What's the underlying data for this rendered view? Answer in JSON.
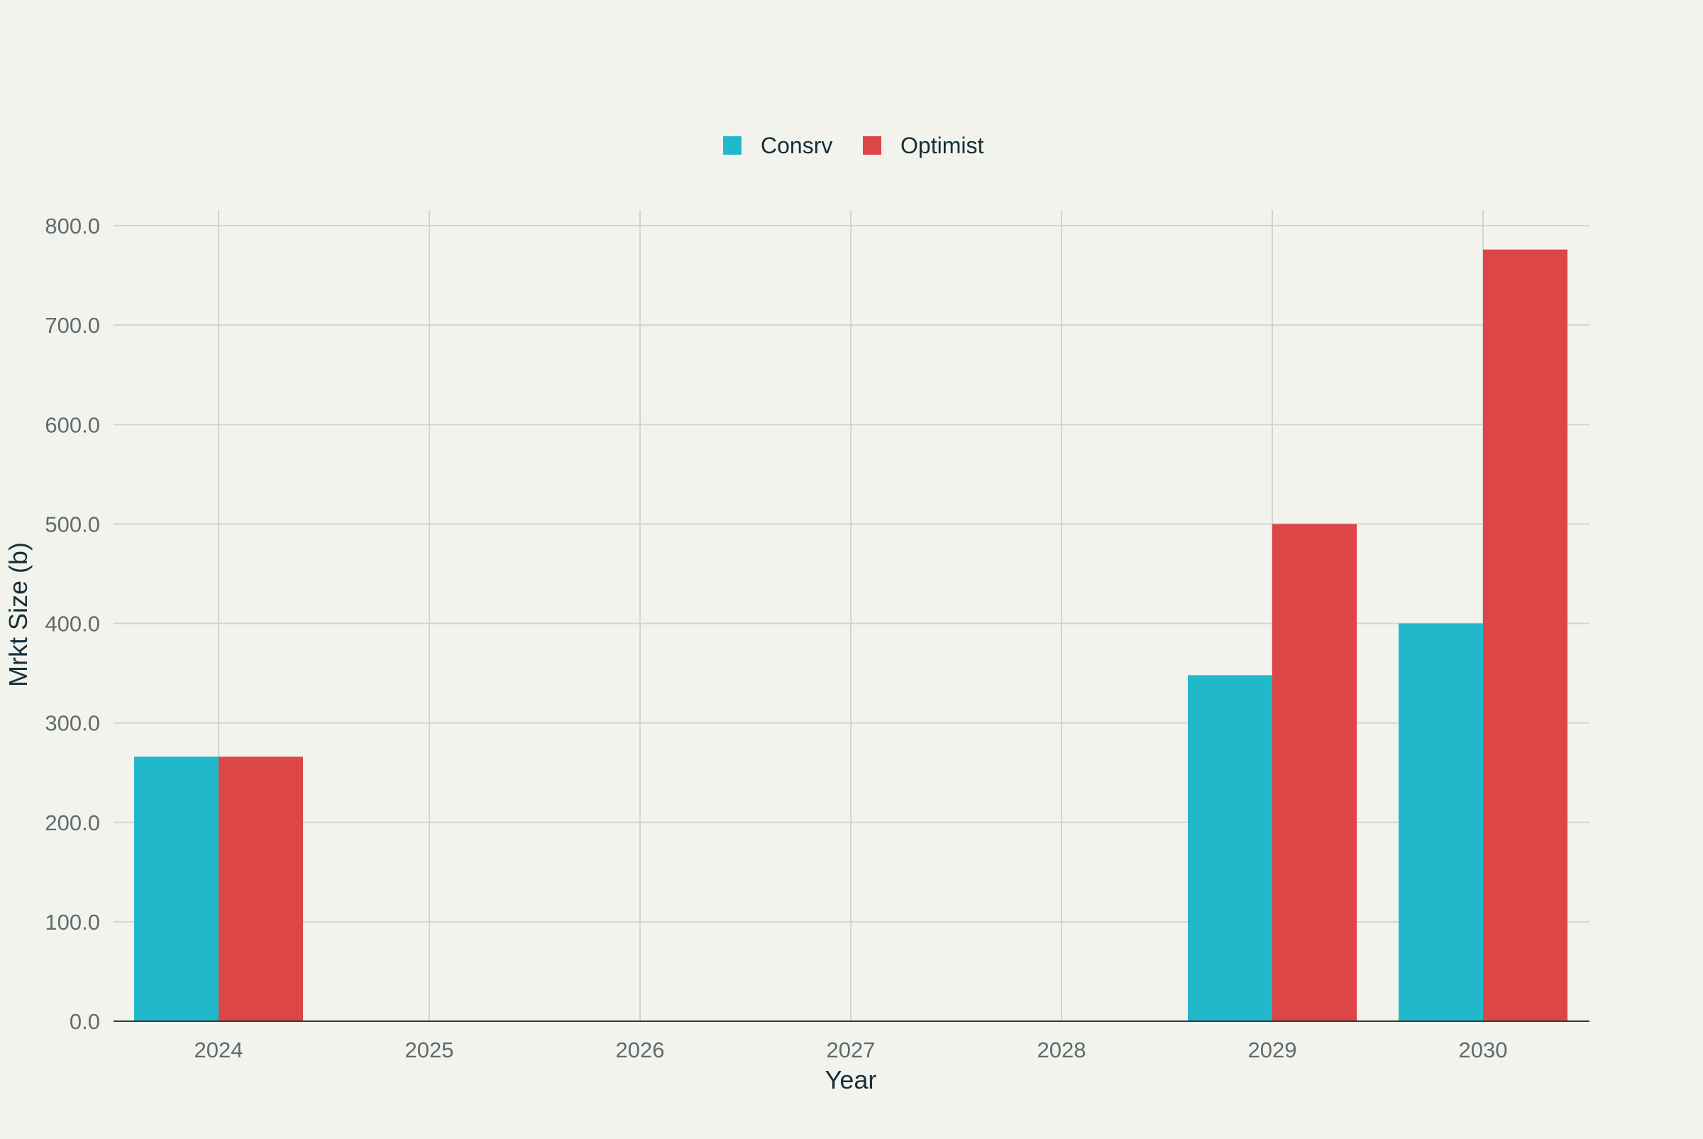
{
  "colors": {
    "background": "#f3f3ee",
    "conservative": "#21b8cc",
    "optimist": "#dc4646",
    "grid": "#d2d4cf",
    "axis": "#2b3a3f"
  },
  "chart_data": {
    "type": "bar",
    "title": "",
    "xlabel": "Year",
    "ylabel": "Mrkt Size (b)",
    "categories": [
      "2024",
      "2025",
      "2026",
      "2027",
      "2028",
      "2029",
      "2030"
    ],
    "series": [
      {
        "name": "Consrv",
        "color": "#21b8cc",
        "values": [
          266,
          0,
          0,
          0,
          0,
          348,
          400
        ]
      },
      {
        "name": "Optimist",
        "color": "#dc4646",
        "values": [
          266,
          0,
          0,
          0,
          0,
          500,
          776
        ]
      }
    ],
    "ylim": [
      0,
      800
    ],
    "yticks": [
      "0.0",
      "100.0",
      "200.0",
      "300.0",
      "400.0",
      "500.0",
      "600.0",
      "700.0",
      "800.0"
    ],
    "grid": true,
    "legend_position": "top-center"
  }
}
